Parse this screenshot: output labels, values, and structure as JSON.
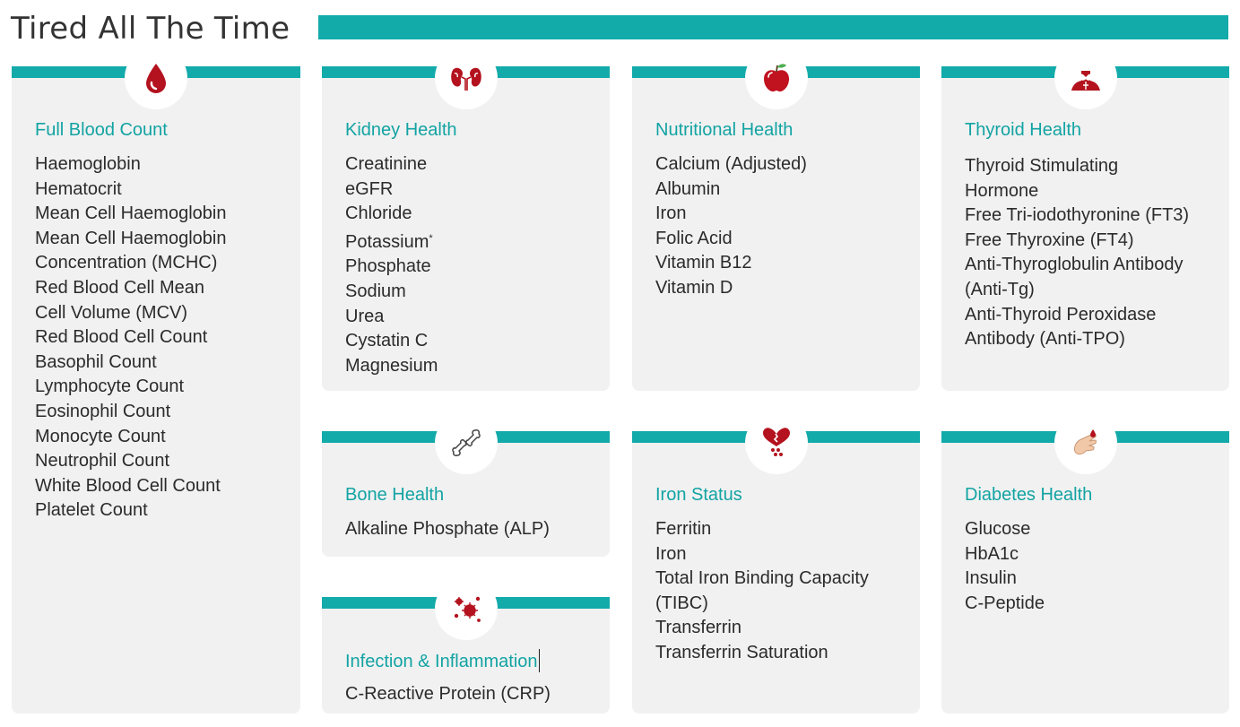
{
  "page": {
    "title": "Tired All The Time"
  },
  "colors": {
    "accent": "#13aaaa",
    "card_bg": "#f1f1f1",
    "icon_red": "#b3121e"
  },
  "cards": {
    "full_blood_count": {
      "icon": "blood-drop-icon",
      "title": "Full Blood Count",
      "items": [
        "Haemoglobin",
        "Hematocrit",
        "Mean Cell Haemoglobin",
        "Mean Cell Haemoglobin",
        "Concentration (MCHC)",
        "Red Blood Cell Mean",
        "Cell Volume (MCV)",
        "Red Blood Cell Count",
        "Basophil Count",
        "Lymphocyte Count",
        "Eosinophil Count",
        "Monocyte Count",
        "Neutrophil Count",
        "White Blood Cell Count",
        "Platelet Count"
      ]
    },
    "kidney_health": {
      "icon": "kidneys-icon",
      "title": "Kidney Health",
      "items": [
        "Creatinine",
        "eGFR",
        "Chloride",
        "Potassium",
        "Phosphate",
        "Sodium",
        "Urea",
        "Cystatin C",
        "Magnesium"
      ],
      "potassium_mark": "*"
    },
    "nutritional_health": {
      "icon": "apple-icon",
      "title": "Nutritional Health",
      "items": [
        "Calcium (Adjusted)",
        "Albumin",
        "Iron",
        "Folic Acid",
        "Vitamin B12",
        "Vitamin D"
      ]
    },
    "thyroid_health": {
      "icon": "thyroid-icon",
      "title": "Thyroid Health",
      "items": [
        "Thyroid Stimulating",
        "Hormone",
        "Free Tri-iodothyronine (FT3)",
        "Free Thyroxine (FT4)",
        "Anti-Thyroglobulin Antibody",
        "(Anti-Tg)",
        "Anti-Thyroid Peroxidase",
        "Antibody (Anti-TPO)"
      ]
    },
    "bone_health": {
      "icon": "bone-joint-icon",
      "title": "Bone Health",
      "items": [
        "Alkaline Phosphate (ALP)"
      ]
    },
    "iron_status": {
      "icon": "heart-drops-icon",
      "title": "Iron Status",
      "items": [
        "Ferritin",
        "Iron",
        "Total Iron Binding Capacity",
        "(TIBC)",
        "Transferrin",
        "Transferrin Saturation"
      ]
    },
    "diabetes_health": {
      "icon": "finger-prick-icon",
      "title": "Diabetes Health",
      "items": [
        "Glucose",
        "HbA1c",
        "Insulin",
        "C-Peptide"
      ]
    },
    "infection_inflammation": {
      "icon": "virus-icon",
      "title": "Infection & Inflammation",
      "items": [
        "C-Reactive Protein (CRP)"
      ]
    }
  }
}
